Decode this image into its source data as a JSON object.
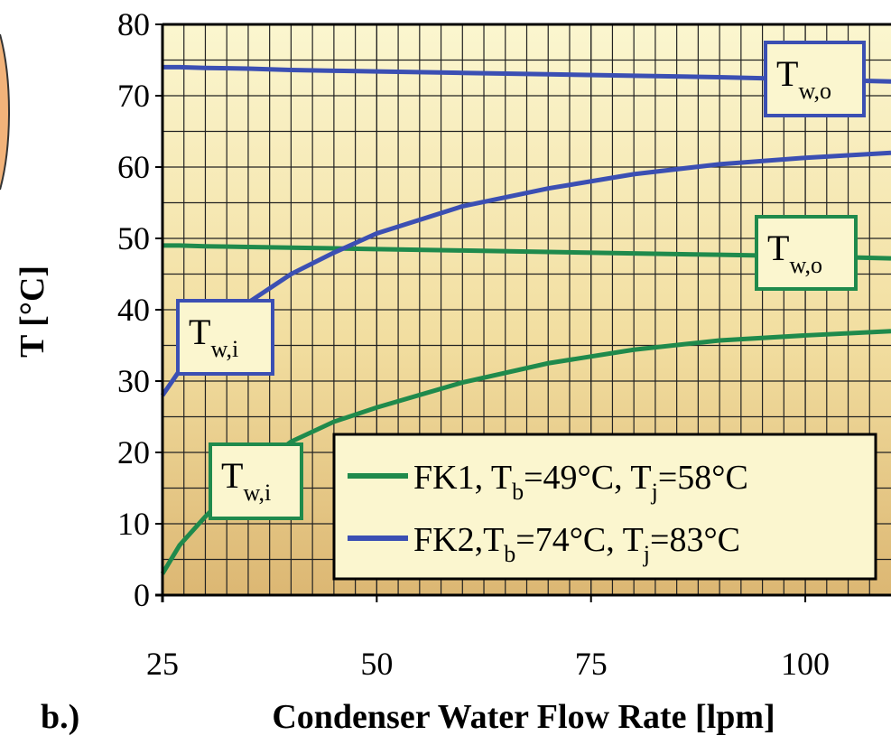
{
  "chart_data": {
    "type": "line",
    "panel_label": "b.)",
    "xlabel": "Condenser Water Flow Rate [lpm]",
    "ylabel": "T [°C]",
    "x": [
      25,
      27,
      30,
      35,
      40,
      45,
      50,
      60,
      70,
      80,
      90,
      100,
      110
    ],
    "xlim": [
      25,
      110
    ],
    "ylim": [
      0,
      80
    ],
    "xticks": [
      25,
      50,
      75,
      100
    ],
    "yticks": [
      0,
      10,
      20,
      30,
      40,
      50,
      60,
      70,
      80
    ],
    "grid": true,
    "legend": "lower right",
    "series": [
      {
        "name": "FK1, Tb=49°C, Tj=58°C",
        "color": "#1f8a4c",
        "values": [
          3,
          7,
          11,
          17,
          21.5,
          24.3,
          26.3,
          29.8,
          32.5,
          34.4,
          35.7,
          36.4,
          37
        ]
      },
      {
        "name": "FK1, Tb=49°C, Tj=58°C",
        "color": "#1f8a4c",
        "values": [
          49,
          49,
          48.9,
          48.8,
          48.7,
          48.6,
          48.5,
          48.3,
          48.1,
          47.9,
          47.7,
          47.5,
          47.2
        ]
      },
      {
        "name": "FK2,Tb=74°C, Tj=83°C",
        "color": "#3b4fb3",
        "values": [
          28,
          31.5,
          36,
          41,
          45,
          48,
          50.7,
          54.5,
          57,
          59,
          60.4,
          61.3,
          62
        ]
      },
      {
        "name": "FK2,Tb=74°C, Tj=83°C",
        "color": "#3b4fb3",
        "values": [
          74,
          74,
          73.9,
          73.8,
          73.6,
          73.5,
          73.4,
          73.2,
          73,
          72.8,
          72.6,
          72.3,
          72
        ]
      }
    ],
    "annotations": [
      {
        "text": "T",
        "subscript": "w,o",
        "color": "#3b4fb3"
      },
      {
        "text": "T",
        "subscript": "w,o",
        "color": "#1f8a4c"
      },
      {
        "text": "T",
        "subscript": "w,i",
        "color": "#3b4fb3"
      },
      {
        "text": "T",
        "subscript": "w,i",
        "color": "#1f8a4c"
      }
    ]
  }
}
